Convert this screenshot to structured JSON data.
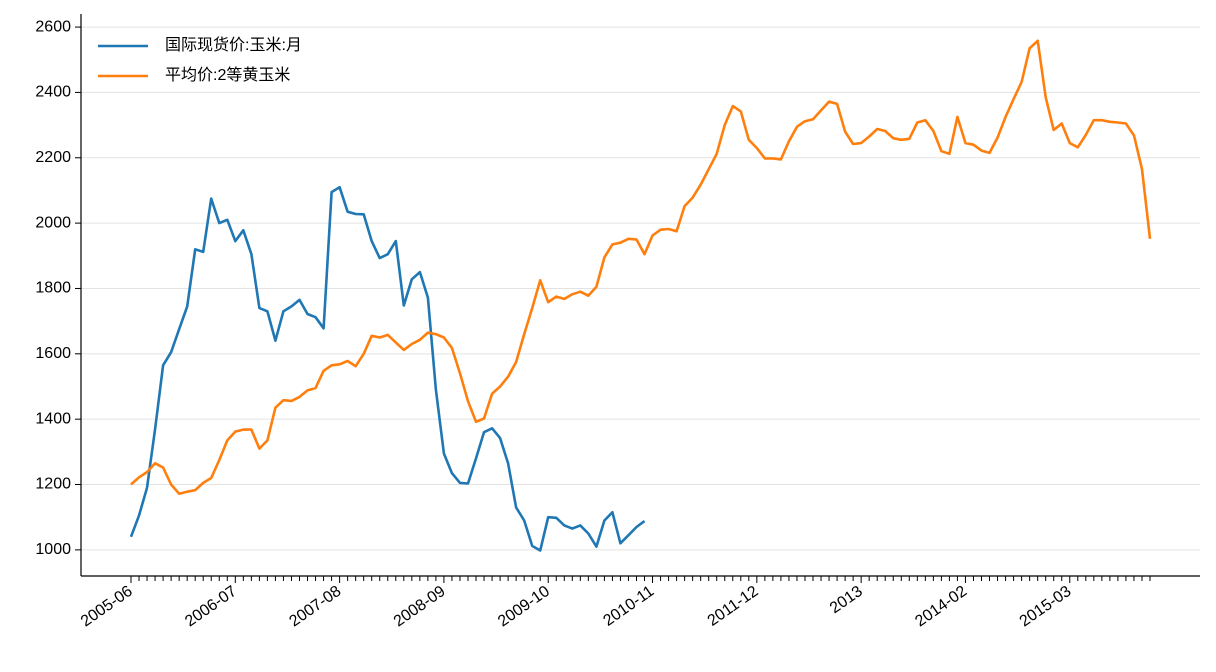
{
  "chart_data": {
    "type": "line",
    "categories": [
      "2005-06",
      null,
      null,
      null,
      null,
      null,
      null,
      null,
      null,
      null,
      null,
      null,
      null,
      "2006-07",
      null,
      null,
      null,
      null,
      null,
      null,
      null,
      null,
      null,
      null,
      null,
      null,
      "2007-08",
      null,
      null,
      null,
      null,
      null,
      null,
      null,
      null,
      null,
      null,
      null,
      null,
      "2008-09",
      null,
      null,
      null,
      null,
      null,
      null,
      null,
      null,
      null,
      null,
      null,
      null,
      "2009-10",
      null,
      null,
      null,
      null,
      null,
      null,
      null,
      null,
      null,
      null,
      null,
      null,
      "2010-11",
      null,
      null,
      null,
      null,
      null,
      null,
      null,
      null,
      null,
      null,
      null,
      null,
      "2011-12",
      null,
      null,
      null,
      null,
      null,
      null,
      null,
      null,
      null,
      null,
      null,
      null,
      "2013",
      null,
      null,
      null,
      null,
      null,
      null,
      null,
      null,
      null,
      null,
      null,
      null,
      "2014-02",
      null,
      null,
      null,
      null,
      null,
      null,
      null,
      null,
      null,
      null,
      null,
      null,
      "2015-03",
      null,
      null,
      null,
      null,
      null,
      null,
      null,
      null,
      null,
      null
    ],
    "series": [
      {
        "name": "国际现货价:玉米:月",
        "color": "#1f77b4",
        "values": [
          1040,
          1105,
          1190,
          1370,
          1565,
          1605,
          1675,
          1745,
          1920,
          1912,
          2075,
          2000,
          2010,
          1945,
          1978,
          1905,
          1740,
          1730,
          1640,
          1730,
          1745,
          1765,
          1722,
          1712,
          1678,
          2095,
          2110,
          2035,
          2028,
          2027,
          1945,
          1893,
          1905,
          1945,
          1748,
          1828,
          1850,
          1772,
          1490,
          1295,
          1235,
          1205,
          1203,
          1280,
          1360,
          1372,
          1342,
          1265,
          1130,
          1090,
          1012,
          998,
          1100,
          1098,
          1075,
          1065,
          1075,
          1050,
          1010,
          1090,
          1115,
          1020,
          1045,
          1070,
          1088,
          null,
          null,
          null,
          null,
          null,
          null,
          null,
          null,
          null,
          null,
          null,
          null,
          null,
          null,
          null,
          null,
          null,
          null,
          null,
          null,
          null,
          null,
          null,
          null,
          null,
          null,
          null,
          null,
          null,
          null,
          null,
          null,
          null,
          null,
          null,
          null,
          null,
          null,
          null,
          null,
          null,
          null,
          null,
          null,
          null,
          null,
          null,
          null,
          null,
          null,
          null,
          null,
          null,
          null,
          null,
          null,
          null,
          null,
          null,
          null,
          null,
          null,
          null
        ]
      },
      {
        "name": "平均价:2等黄玉米",
        "color": "#ff7f0e",
        "values": [
          1200,
          1222,
          1238,
          1265,
          1252,
          1200,
          1172,
          1178,
          1183,
          1205,
          1220,
          1275,
          1335,
          1362,
          1368,
          1368,
          1310,
          1335,
          1435,
          1458,
          1456,
          1468,
          1488,
          1495,
          1548,
          1565,
          1568,
          1578,
          1562,
          1600,
          1655,
          1650,
          1658,
          1635,
          1612,
          1630,
          1643,
          1665,
          1660,
          1650,
          1618,
          1540,
          1455,
          1392,
          1402,
          1478,
          1500,
          1530,
          1575,
          1660,
          1740,
          1825,
          1758,
          1775,
          1768,
          1782,
          1790,
          1778,
          1805,
          1895,
          1935,
          1940,
          1952,
          1950,
          1905,
          1962,
          1980,
          1982,
          1975,
          2052,
          2078,
          2118,
          2165,
          2212,
          2300,
          2358,
          2342,
          2255,
          2230,
          2198,
          2198,
          2195,
          2250,
          2295,
          2312,
          2318,
          2345,
          2372,
          2365,
          2280,
          2242,
          2245,
          2265,
          2288,
          2282,
          2260,
          2255,
          2258,
          2308,
          2315,
          2282,
          2220,
          2212,
          2325,
          2245,
          2240,
          2222,
          2215,
          2262,
          2325,
          2380,
          2432,
          2535,
          2558,
          2385,
          2285,
          2305,
          2245,
          2232,
          2270,
          2315,
          2315,
          2310,
          2308,
          2305,
          2268,
          2165,
          1952
        ]
      }
    ],
    "ylim": [
      920,
      2640
    ],
    "yticks": [
      1000,
      1200,
      1400,
      1600,
      1800,
      2000,
      2200,
      2400,
      2600
    ],
    "grid": true,
    "legend": "upper-left"
  }
}
